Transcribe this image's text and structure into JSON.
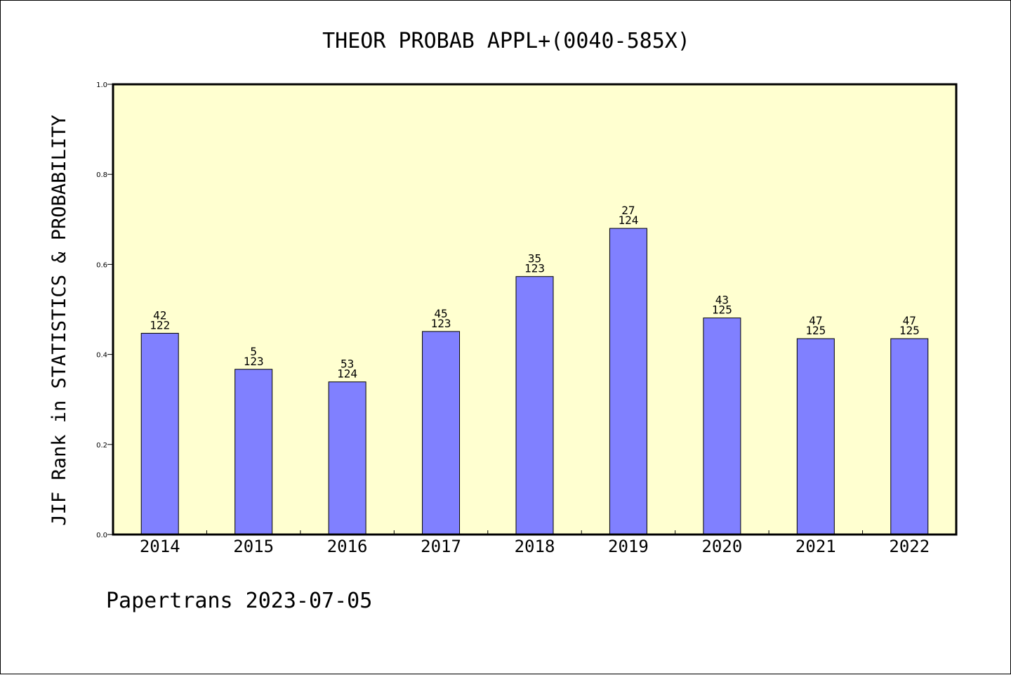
{
  "chart_data": {
    "type": "bar",
    "title": "THEOR PROBAB APPL+(0040-585X)",
    "ylabel": "JIF Rank in STATISTICS & PROBABILITY",
    "xlabel": "",
    "ylim": [
      0,
      1.0
    ],
    "yticks": [
      "0.0",
      "0.2",
      "0.4",
      "0.6",
      "0.8",
      "1.0"
    ],
    "categories": [
      "2014",
      "2015",
      "2016",
      "2017",
      "2018",
      "2019",
      "2020",
      "2021",
      "2022"
    ],
    "values": [
      0.447,
      0.367,
      0.339,
      0.451,
      0.573,
      0.68,
      0.481,
      0.435,
      0.435
    ],
    "ranks": [
      "42",
      "5",
      "53",
      "45",
      "35",
      "27",
      "43",
      "47",
      "47"
    ],
    "totals": [
      "122",
      "123",
      "124",
      "123",
      "123",
      "124",
      "125",
      "125",
      "125"
    ],
    "grid": false,
    "colors": {
      "plot_bg": "#ffffd0",
      "bar": "#8080ff",
      "axis": "#000000"
    }
  },
  "footer": {
    "credit": "Papertrans 2023-07-05"
  }
}
